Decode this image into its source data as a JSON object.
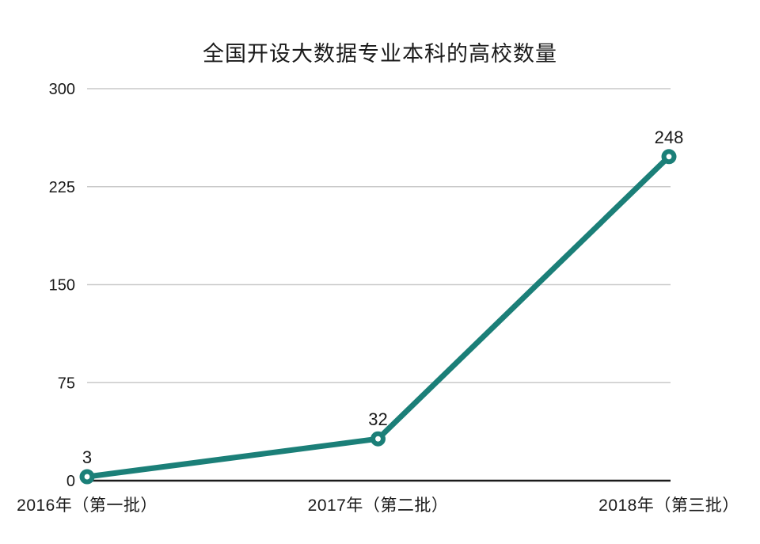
{
  "chart_data": {
    "type": "line",
    "title": "全国开设大数据专业本科的高校数量",
    "categories": [
      "2016年（第一批）",
      "2017年（第二批）",
      "2018年（第三批）"
    ],
    "values": [
      3,
      32,
      248
    ],
    "yticks": [
      0,
      75,
      150,
      225,
      300
    ],
    "ylim": [
      0,
      300
    ],
    "grid": true,
    "legend": "none",
    "colors": {
      "line": "#1b7f78",
      "marker_fill": "#1b7f78",
      "marker_hole": "#ffffff",
      "gridline": "#c9c9c9",
      "axis": "#1a1a1a",
      "text": "#1a1a1a",
      "background": "#ffffff"
    }
  }
}
